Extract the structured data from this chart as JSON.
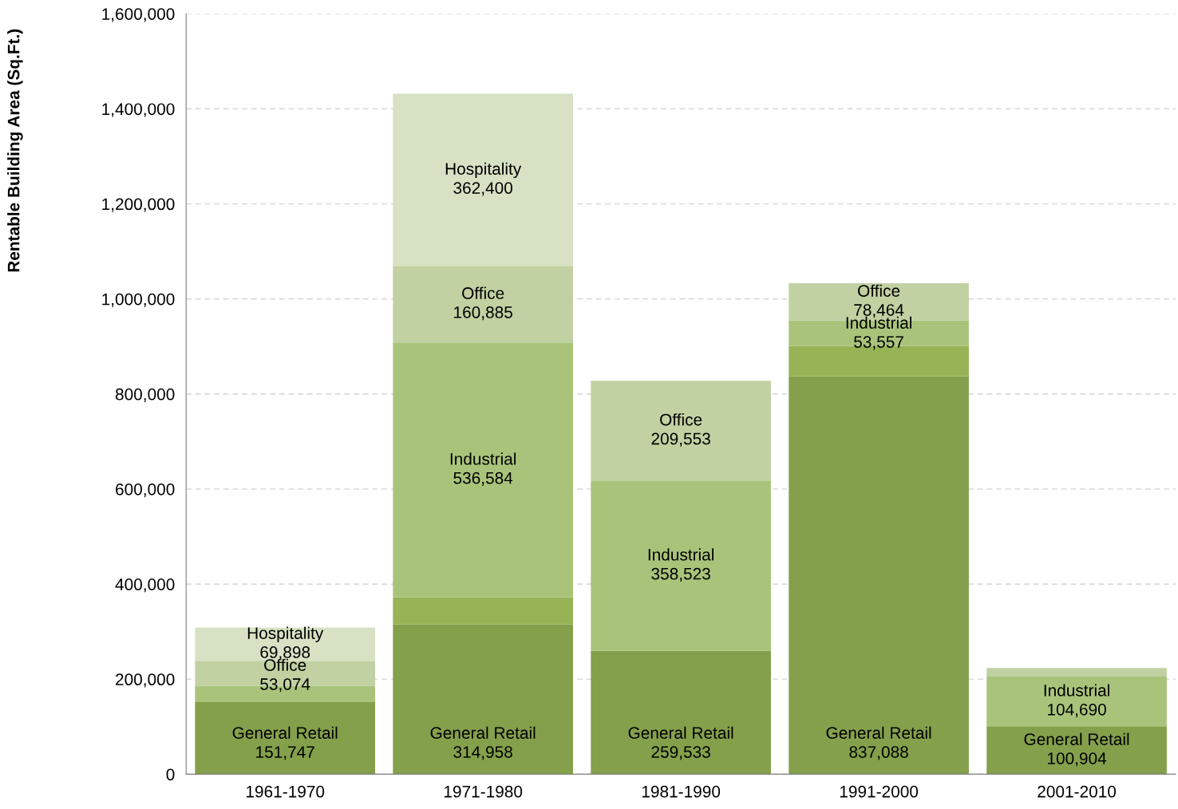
{
  "chart_data": {
    "type": "bar",
    "stacked": true,
    "ylabel": "Rentable Building Area (Sq.Ft.)",
    "categories": [
      "1961-1970",
      "1971-1980",
      "1981-1990",
      "1991-2000",
      "2001-2010"
    ],
    "series": [
      {
        "name": "General Retail",
        "color": "#84a04b",
        "values": [
          151747,
          314958,
          259533,
          837088,
          100904
        ],
        "value_labels": [
          "151,747",
          "314,958",
          "259,533",
          "837,088",
          "100,904"
        ]
      },
      {
        "color": "#97b356",
        "values": [
          0,
          57000,
          0,
          64000,
          0
        ]
      },
      {
        "name": "Industrial",
        "color": "#a9c47a",
        "values": [
          34000,
          536584,
          358523,
          53557,
          104690
        ],
        "value_labels": [
          null,
          "536,584",
          "358,523",
          "53,557",
          "104,690"
        ]
      },
      {
        "name": "Office",
        "color": "#c1d1a2",
        "values": [
          53074,
          160885,
          209553,
          78464,
          18000
        ],
        "value_labels": [
          "53,074",
          "160,885",
          "209,553",
          "78,464",
          null
        ]
      },
      {
        "name": "Hospitality",
        "color": "#d7e1c4",
        "values": [
          69898,
          362400,
          0,
          0,
          0
        ],
        "value_labels": [
          "69,898",
          "362,400",
          null,
          null,
          null
        ]
      }
    ],
    "ylim": [
      0,
      1600000
    ],
    "yticks": [
      0,
      {
        "value": 200000,
        "label": "200,000"
      },
      {
        "value": 400000,
        "label": "400,000"
      },
      {
        "value": 600000,
        "label": "600,000"
      },
      {
        "value": 800000,
        "label": "800,000"
      },
      {
        "value": 1000000,
        "label": "1,000,000"
      },
      {
        "value": 1200000,
        "label": "1,200,000"
      },
      {
        "value": 1400000,
        "label": "1,400,000"
      },
      {
        "value": 1600000,
        "label": "1,600,000"
      }
    ],
    "grid": "y",
    "legend": false
  }
}
